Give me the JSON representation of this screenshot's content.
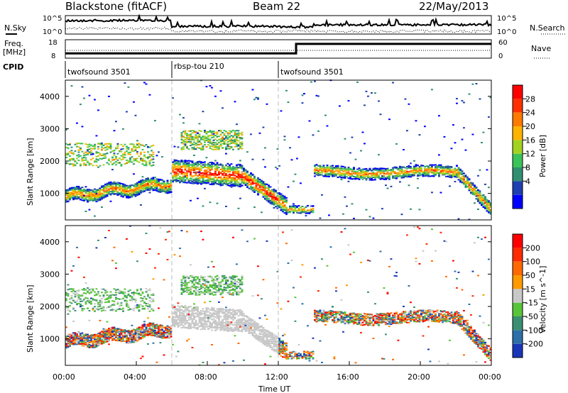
{
  "header": {
    "title": "Blackstone (fitACF)",
    "beam": "Beam 22",
    "date": "22/May/2013"
  },
  "noise_panel": {
    "left_label": "N.Sky",
    "left_ticks": [
      "10^5",
      "10^0"
    ],
    "right_ticks": [
      "10^5",
      "10^0"
    ],
    "right_label": "N.Search"
  },
  "freq_panel": {
    "left_label_line1": "Freq.",
    "left_label_line2": "[MHz]",
    "left_ticks": [
      "18",
      "8"
    ],
    "right_ticks": [
      "60",
      "0"
    ],
    "right_label": "Nave"
  },
  "cpid": {
    "label": "CPID",
    "segments": [
      {
        "start_h": 0,
        "text": "twofsound 3501"
      },
      {
        "start_h": 6,
        "text": "rbsp-tou 210"
      },
      {
        "start_h": 12,
        "text": "twofsound 3501"
      }
    ]
  },
  "range_axis": {
    "label": "Slant Range [km]",
    "ticks": [
      "4000",
      "3000",
      "2000",
      "1000"
    ]
  },
  "time_axis": {
    "label": "Time UT",
    "ticks": [
      "00:00",
      "04:00",
      "08:00",
      "12:00",
      "16:00",
      "20:00",
      "00:00"
    ]
  },
  "power_scale": {
    "label": "Power [dB]",
    "ticks": [
      "28",
      "24",
      "20",
      "16",
      "12",
      "8",
      "4"
    ],
    "colors": [
      "#0000ff",
      "#1d3fb0",
      "#2f8f70",
      "#39c35a",
      "#a2d21f",
      "#ffb300",
      "#ff7a00",
      "#ff3000",
      "#ff0000"
    ]
  },
  "velocity_scale": {
    "label": "Velocity [m s^-1]",
    "ticks": [
      "200",
      "100",
      "50",
      "15",
      "-15",
      "-50",
      "-100",
      "-200"
    ],
    "colors": [
      "#1a36b8",
      "#2d6fa8",
      "#3a8f72",
      "#58c43a",
      "#c8c8c8",
      "#ff9a00",
      "#ff6a00",
      "#ff2a00",
      "#ff0000"
    ]
  },
  "chart_data": {
    "type": "heatmap",
    "title": "Blackstone (fitACF)",
    "xlabel": "Time UT",
    "ylabel": "Slant Range [km]",
    "xlim": [
      0,
      24
    ],
    "ylim": [
      180,
      4500
    ],
    "x_tick_labels": [
      "00:00",
      "04:00",
      "08:00",
      "12:00",
      "16:00",
      "20:00",
      "00:00"
    ],
    "y_ticks": [
      1000,
      2000,
      3000,
      4000
    ],
    "frequency_mhz": [
      {
        "start_h": 0,
        "end_h": 13,
        "value": 10
      },
      {
        "start_h": 13,
        "end_h": 24,
        "value": 17
      }
    ],
    "cpid_changes_h": [
      6,
      12
    ],
    "panels": [
      "Power [dB]",
      "Velocity [m s^-1]"
    ]
  },
  "icons": {
    "power_colorbar": "power-colorbar-icon",
    "velocity_colorbar": "velocity-colorbar-icon"
  }
}
